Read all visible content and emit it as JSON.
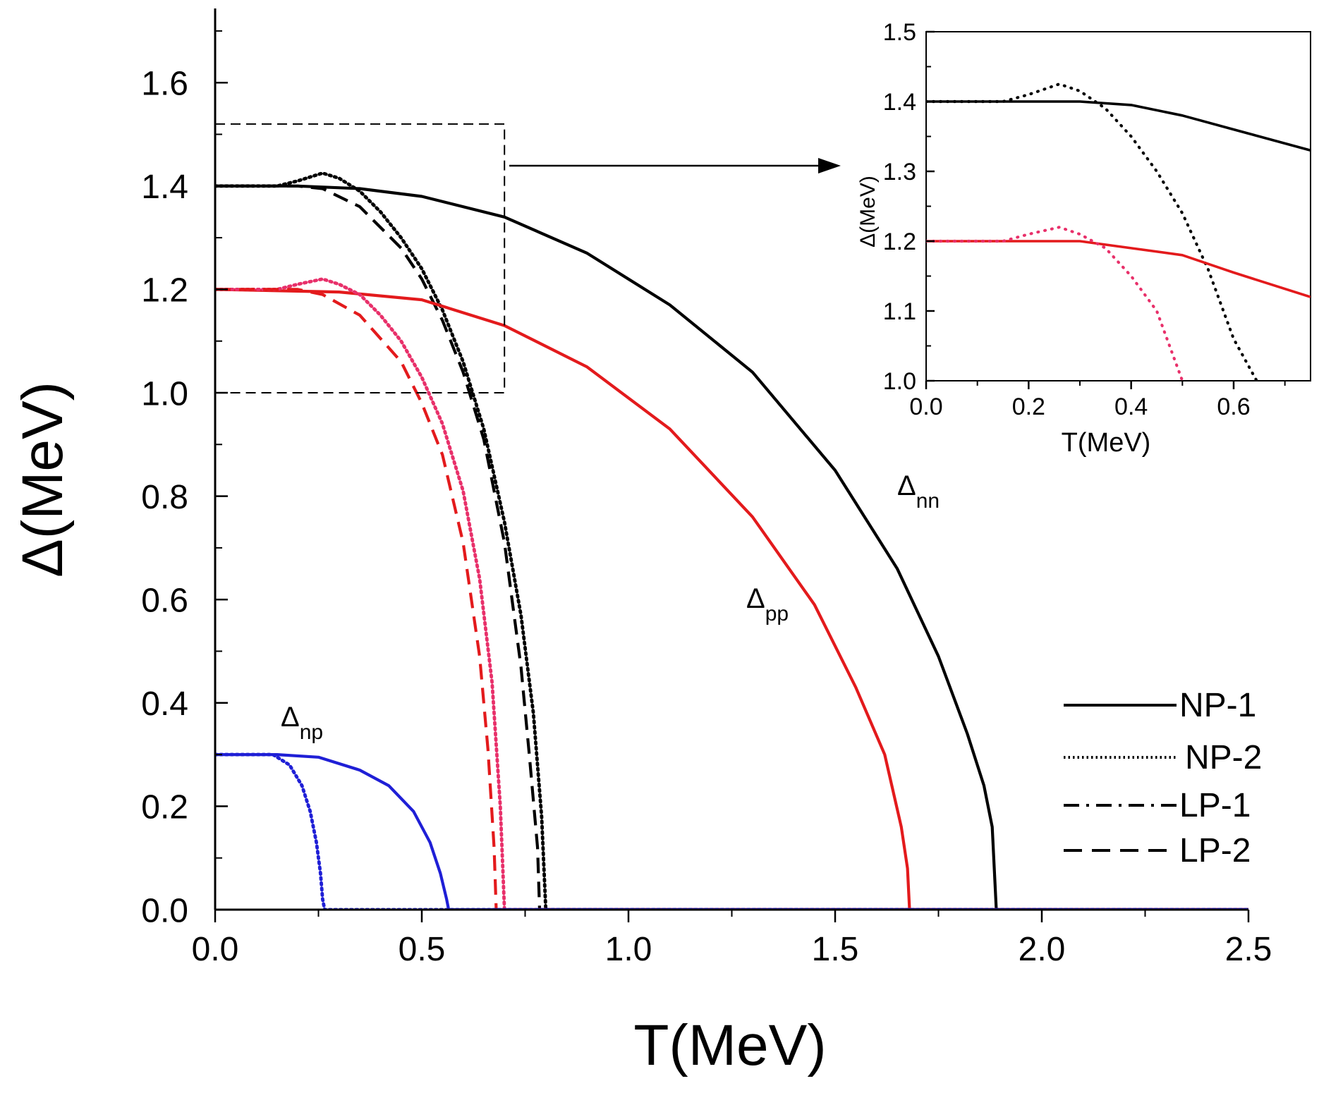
{
  "chart_data": [
    {
      "type": "line",
      "xlabel": "T(MeV)",
      "ylabel": "Δ(MeV)",
      "xlim": [
        0,
        2.5
      ],
      "ylim": [
        0,
        1.75
      ],
      "xticks": [
        "0.0",
        "0.5",
        "1.0",
        "1.5",
        "2.0",
        "2.5"
      ],
      "yticks": [
        "0.0",
        "0.2",
        "0.4",
        "0.6",
        "0.8",
        "1.0",
        "1.2",
        "1.4",
        "1.6"
      ],
      "legend": {
        "placement": "bottom-right",
        "entries": [
          {
            "label": "NP-1",
            "style": "solid"
          },
          {
            "label": "NP-2",
            "style": "dotted"
          },
          {
            "label": "LP-1",
            "style": "dash-dot"
          },
          {
            "label": "LP-2",
            "style": "dashed"
          }
        ]
      },
      "annotations": [
        {
          "base": "Δ",
          "sub": "nn"
        },
        {
          "base": "Δ",
          "sub": "pp"
        },
        {
          "base": "Δ",
          "sub": "np"
        }
      ],
      "zoom_box": {
        "x": [
          0,
          0.7
        ],
        "y": [
          1.0,
          1.52
        ]
      },
      "series": [
        {
          "gap": "nn",
          "style": "solid",
          "color": "#000000",
          "x": [
            0,
            0.2,
            0.35,
            0.5,
            0.7,
            0.9,
            1.1,
            1.3,
            1.5,
            1.65,
            1.75,
            1.82,
            1.86,
            1.88,
            1.89,
            1.9,
            2.5
          ],
          "values": [
            1.4,
            1.4,
            1.395,
            1.38,
            1.34,
            1.27,
            1.17,
            1.04,
            0.85,
            0.66,
            0.49,
            0.34,
            0.24,
            0.16,
            0.0,
            0.0,
            0.0
          ]
        },
        {
          "gap": "nn",
          "style": "dotted",
          "color": "#000000",
          "x": [
            0,
            0.15,
            0.2,
            0.26,
            0.3,
            0.35,
            0.4,
            0.45,
            0.5,
            0.55,
            0.6,
            0.65,
            0.7,
            0.74,
            0.77,
            0.79,
            0.8,
            2.5
          ],
          "values": [
            1.4,
            1.4,
            1.41,
            1.425,
            1.415,
            1.39,
            1.35,
            1.3,
            1.24,
            1.16,
            1.06,
            0.93,
            0.75,
            0.57,
            0.38,
            0.18,
            0.0,
            0.0
          ]
        },
        {
          "gap": "nn",
          "style": "dashed",
          "color": "#000000",
          "x": [
            0,
            0.2,
            0.26,
            0.35,
            0.45,
            0.5,
            0.55,
            0.6,
            0.65,
            0.7,
            0.74,
            0.76,
            0.78,
            0.785,
            2.5
          ],
          "values": [
            1.4,
            1.4,
            1.395,
            1.36,
            1.28,
            1.22,
            1.14,
            1.04,
            0.91,
            0.71,
            0.47,
            0.3,
            0.12,
            0.0,
            0.0
          ]
        },
        {
          "gap": "pp",
          "style": "solid",
          "color": "#e31a1c",
          "x": [
            0,
            0.3,
            0.5,
            0.7,
            0.9,
            1.1,
            1.3,
            1.45,
            1.55,
            1.62,
            1.66,
            1.675,
            1.68,
            2.5
          ],
          "values": [
            1.2,
            1.195,
            1.18,
            1.13,
            1.05,
            0.93,
            0.76,
            0.59,
            0.43,
            0.3,
            0.16,
            0.08,
            0.0,
            0.0
          ]
        },
        {
          "gap": "pp",
          "style": "dotted",
          "color": "#e8306a",
          "x": [
            0,
            0.15,
            0.2,
            0.26,
            0.3,
            0.35,
            0.4,
            0.45,
            0.5,
            0.55,
            0.6,
            0.64,
            0.67,
            0.69,
            0.7,
            2.5
          ],
          "values": [
            1.2,
            1.2,
            1.21,
            1.22,
            1.21,
            1.19,
            1.15,
            1.1,
            1.03,
            0.94,
            0.81,
            0.64,
            0.44,
            0.2,
            0.0,
            0.0
          ]
        },
        {
          "gap": "pp",
          "style": "dashed",
          "color": "#e31a1c",
          "x": [
            0,
            0.2,
            0.26,
            0.35,
            0.45,
            0.5,
            0.55,
            0.6,
            0.64,
            0.66,
            0.675,
            0.68,
            2.5
          ],
          "values": [
            1.2,
            1.2,
            1.19,
            1.15,
            1.06,
            0.98,
            0.88,
            0.71,
            0.49,
            0.31,
            0.12,
            0.0,
            0.0
          ]
        },
        {
          "gap": "np",
          "style": "solid",
          "color": "#1f1fd6",
          "x": [
            0,
            0.15,
            0.25,
            0.35,
            0.42,
            0.48,
            0.52,
            0.545,
            0.56,
            0.565,
            2.5
          ],
          "values": [
            0.3,
            0.3,
            0.295,
            0.27,
            0.24,
            0.19,
            0.13,
            0.07,
            0.02,
            0.0,
            0.0
          ]
        },
        {
          "gap": "np",
          "style": "dotted",
          "color": "#1f1fd6",
          "x": [
            0,
            0.14,
            0.18,
            0.21,
            0.23,
            0.245,
            0.255,
            0.26,
            0.265,
            2.5
          ],
          "values": [
            0.3,
            0.3,
            0.28,
            0.24,
            0.19,
            0.13,
            0.07,
            0.02,
            0.0,
            0.0
          ]
        }
      ]
    },
    {
      "type": "line",
      "xlabel": "T(MeV)",
      "ylabel": "Δ(MeV)",
      "xlim": [
        0,
        0.75
      ],
      "ylim": [
        1.0,
        1.5
      ],
      "xticks": [
        "0.0",
        "0.2",
        "0.4",
        "0.6"
      ],
      "yticks": [
        "1.0",
        "1.1",
        "1.2",
        "1.3",
        "1.4",
        "1.5"
      ],
      "series": [
        {
          "gap": "nn",
          "style": "solid",
          "color": "#000000",
          "x": [
            0,
            0.3,
            0.4,
            0.5,
            0.6,
            0.75
          ],
          "values": [
            1.4,
            1.4,
            1.395,
            1.38,
            1.36,
            1.33
          ]
        },
        {
          "gap": "nn",
          "style": "dotted",
          "color": "#000000",
          "x": [
            0,
            0.15,
            0.2,
            0.26,
            0.3,
            0.35,
            0.4,
            0.45,
            0.5,
            0.55,
            0.6,
            0.645
          ],
          "values": [
            1.4,
            1.4,
            1.41,
            1.425,
            1.415,
            1.39,
            1.35,
            1.3,
            1.24,
            1.16,
            1.06,
            1.0
          ]
        },
        {
          "gap": "pp",
          "style": "solid",
          "color": "#e31a1c",
          "x": [
            0,
            0.3,
            0.4,
            0.5,
            0.6,
            0.75
          ],
          "values": [
            1.2,
            1.2,
            1.19,
            1.18,
            1.155,
            1.12
          ]
        },
        {
          "gap": "pp",
          "style": "dotted",
          "color": "#e8306a",
          "x": [
            0,
            0.15,
            0.2,
            0.26,
            0.3,
            0.35,
            0.4,
            0.45,
            0.5
          ],
          "values": [
            1.2,
            1.2,
            1.21,
            1.22,
            1.21,
            1.19,
            1.15,
            1.1,
            1.0
          ]
        }
      ]
    }
  ]
}
